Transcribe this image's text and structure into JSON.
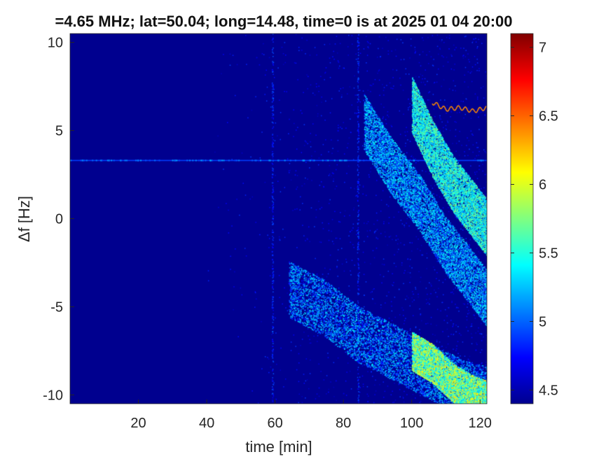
{
  "chart_data": {
    "type": "heatmap",
    "title": "=4.65 MHz;  lat=50.04; long=14.48, time=0 is at 2025 01 04 20:00",
    "xlabel": "time [min]",
    "ylabel": "Δf [Hz]",
    "xlim": [
      0,
      122
    ],
    "ylim": [
      -10.5,
      10.5
    ],
    "x_ticks": [
      20,
      40,
      60,
      80,
      100,
      120
    ],
    "y_ticks": [
      -10,
      -5,
      0,
      5,
      10
    ],
    "colorbar": {
      "range": [
        4.4,
        7.1
      ],
      "ticks": [
        4.5,
        5,
        5.5,
        6,
        6.5,
        7
      ],
      "colormap": "jet"
    },
    "background_color": "#00008f",
    "features": [
      {
        "kind": "horizontal-line",
        "df_hz": 3.3,
        "x_range": [
          0,
          122
        ],
        "level": 4.9
      },
      {
        "kind": "faint-vertical-line",
        "x_min": 59,
        "level": 4.7
      },
      {
        "kind": "faint-vertical-line",
        "x_min": 84,
        "level": 4.7
      },
      {
        "kind": "bright-trace",
        "x": [
          106,
          110,
          114,
          118,
          122
        ],
        "df_hz": [
          6.6,
          6.2,
          6.3,
          6.1,
          6.3
        ],
        "level": 6.4
      },
      {
        "kind": "spread-band",
        "x": [
          100,
          106,
          112,
          118,
          122
        ],
        "df_hz": [
          6.5,
          4.0,
          2.0,
          0.5,
          -0.5
        ],
        "level": 5.4
      },
      {
        "kind": "spread-band",
        "x": [
          86,
          94,
          102,
          110,
          118,
          122
        ],
        "df_hz": [
          5.5,
          3.0,
          1.0,
          -1.5,
          -3.5,
          -4.5
        ],
        "level": 5.1
      },
      {
        "kind": "spread-band",
        "x": [
          64,
          74,
          84,
          94,
          104,
          114,
          122
        ],
        "df_hz": [
          -4.0,
          -5.0,
          -6.5,
          -7.5,
          -8.5,
          -9.5,
          -10.0
        ],
        "level": 5.0
      },
      {
        "kind": "bright-blob",
        "x": [
          100,
          106,
          112,
          118,
          122
        ],
        "df_hz": [
          -7.5,
          -8.2,
          -9.3,
          -10.0,
          -10.3
        ],
        "level": 5.8
      }
    ]
  }
}
